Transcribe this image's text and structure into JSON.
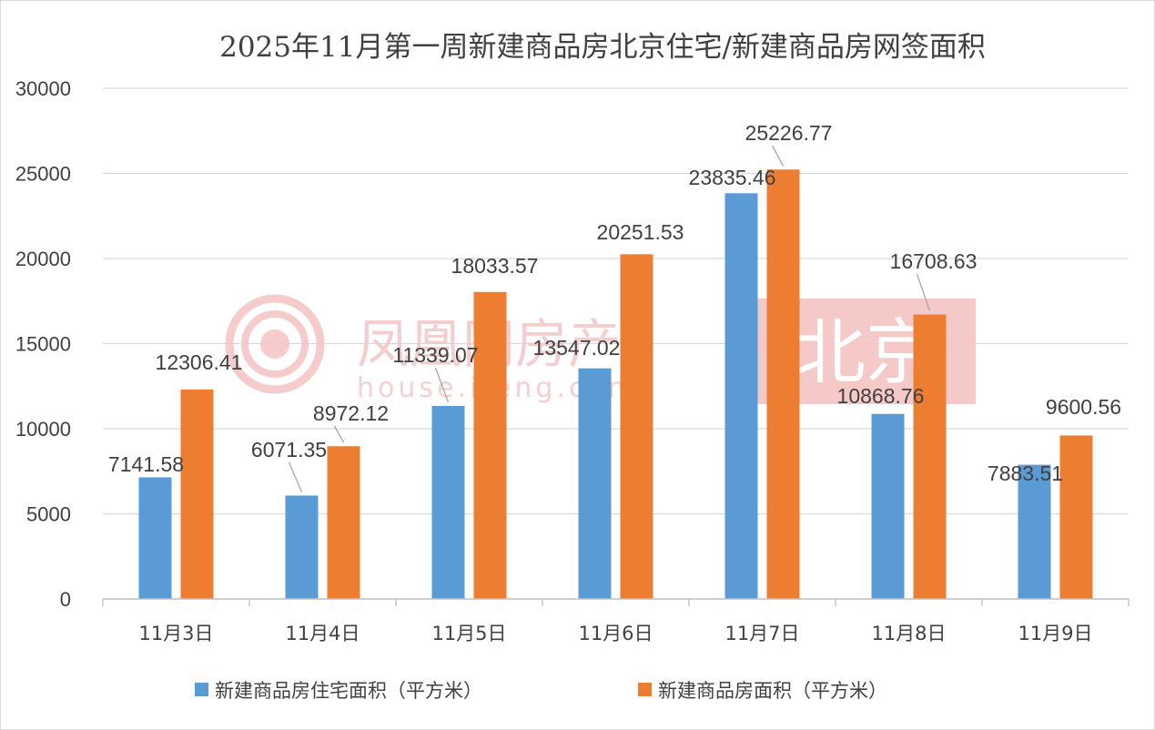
{
  "chart_data": {
    "type": "bar",
    "title": "2025年11月第一周新建商品房北京住宅/新建商品房网签面积",
    "categories": [
      "11月3日",
      "11月4日",
      "11月5日",
      "11月6日",
      "11月7日",
      "11月8日",
      "11月9日"
    ],
    "series": [
      {
        "name": "新建商品房住宅面积（平方米）",
        "color": "#5b9bd5",
        "values": [
          7141.58,
          6071.35,
          11339.07,
          13547.02,
          23835.46,
          10868.76,
          7883.51
        ],
        "labels": [
          "7141.58",
          "6071.35",
          "11339.07",
          "13547.02",
          "23835.46",
          "10868.76",
          "7883.51"
        ]
      },
      {
        "name": "新建商品房面积（平方米）",
        "color": "#ed7d31",
        "values": [
          12306.41,
          8972.12,
          18033.57,
          20251.53,
          25226.77,
          16708.63,
          9600.56
        ],
        "labels": [
          "12306.41",
          "8972.12",
          "18033.57",
          "20251.53",
          "25226.77",
          "16708.63",
          "9600.56"
        ]
      }
    ],
    "ylim": [
      0,
      30000
    ],
    "yticks": [
      "0",
      "5000",
      "10000",
      "15000",
      "20000",
      "25000",
      "30000"
    ],
    "grid": true,
    "legend": "bottom"
  },
  "watermark": {
    "brand": "凤凰网房产",
    "site": "house.ifeng.com",
    "city": "北京"
  }
}
